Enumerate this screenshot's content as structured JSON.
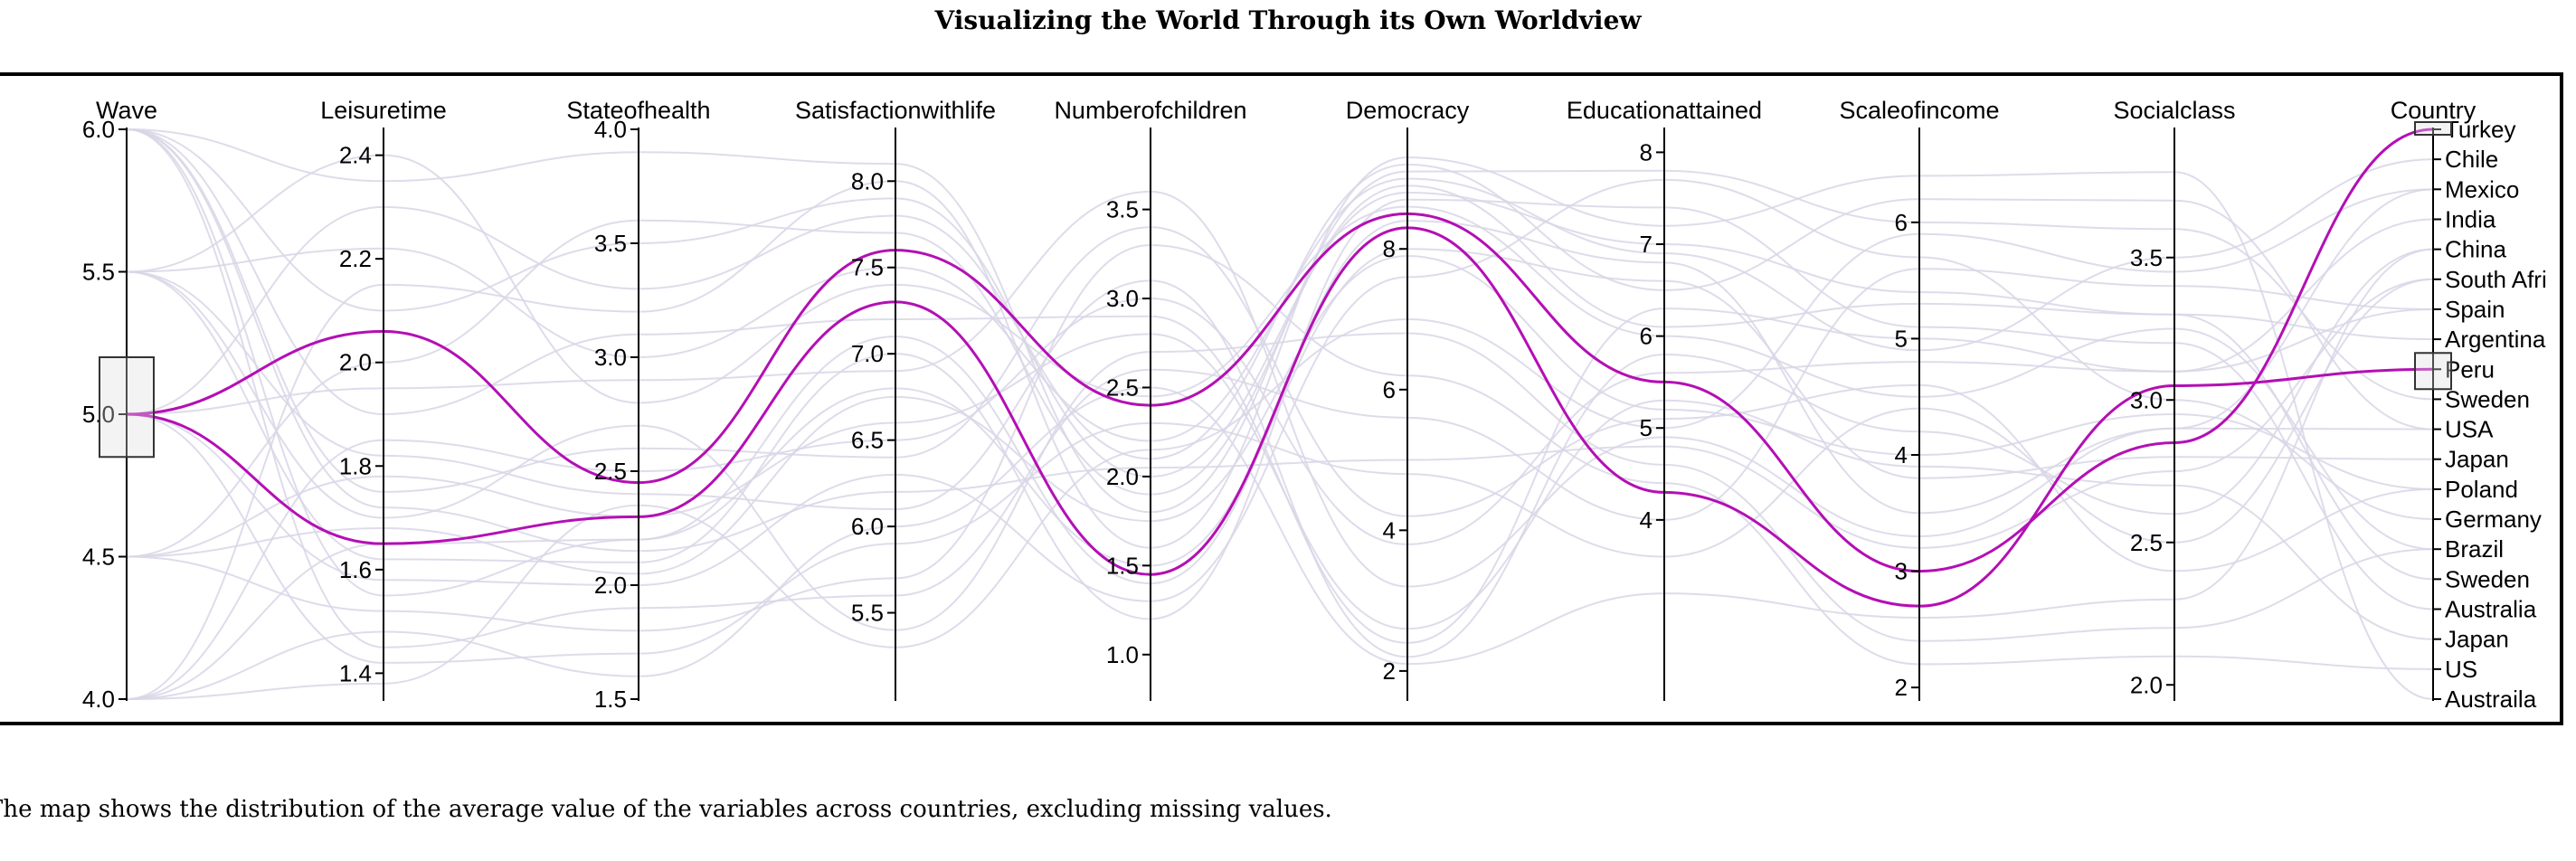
{
  "page": {
    "title": "Visualizing the World Through its Own Worldview",
    "caption": "The map shows the distribution of the average value of the variables across countries, excluding missing values."
  },
  "colors": {
    "background_line": "#d8d6e6",
    "highlight_line": "#b40fb4",
    "axis": "#000000",
    "brush_fill": "#dddddd"
  },
  "chart_data": {
    "type": "parallel-coordinates",
    "title": "Visualizing the World Through its Own Worldview",
    "axes": [
      {
        "name": "Wave",
        "label": "Wave",
        "domain": [
          4.0,
          6.0
        ],
        "ticks": [
          4.0,
          4.5,
          5.0,
          5.5,
          6.0
        ],
        "tick_labels": [
          "4.0",
          "4.5",
          "5.0",
          "5.5",
          "6.0"
        ],
        "brush": [
          4.85,
          5.2
        ]
      },
      {
        "name": "Leisuretime",
        "label": "Leisuretime",
        "domain": [
          1.35,
          2.45
        ],
        "ticks": [
          1.4,
          1.6,
          1.8,
          2.0,
          2.2,
          2.4
        ],
        "tick_labels": [
          "1.4",
          "1.6",
          "1.8",
          "2.0",
          "2.2",
          "2.4"
        ]
      },
      {
        "name": "Stateofhealth",
        "label": "Stateofhealth",
        "domain": [
          1.5,
          4.0
        ],
        "ticks": [
          1.5,
          2.0,
          2.5,
          3.0,
          3.5,
          4.0
        ],
        "tick_labels": [
          "1.5",
          "2.0",
          "2.5",
          "3.0",
          "3.5",
          "4.0"
        ]
      },
      {
        "name": "Satisfactionwithlife",
        "label": "Satisfactionwithlife",
        "domain": [
          5.0,
          8.3
        ],
        "ticks": [
          5.5,
          6.0,
          6.5,
          7.0,
          7.5,
          8.0
        ],
        "tick_labels": [
          "5.5",
          "6.0",
          "6.5",
          "7.0",
          "7.5",
          "8.0"
        ]
      },
      {
        "name": "Numberofchildren",
        "label": "Numberofchildren",
        "domain": [
          0.75,
          3.95
        ],
        "ticks": [
          1.0,
          1.5,
          2.0,
          2.5,
          3.0,
          3.5
        ],
        "tick_labels": [
          "1.0",
          "1.5",
          "2.0",
          "2.5",
          "3.0",
          "3.5"
        ]
      },
      {
        "name": "Democracy",
        "label": "Democracy",
        "domain": [
          1.6,
          9.7
        ],
        "ticks": [
          2,
          4,
          6,
          8
        ],
        "tick_labels": [
          "2",
          "4",
          "6",
          "8"
        ]
      },
      {
        "name": "Educationattained",
        "label": "Educationattained",
        "domain": [
          2.05,
          8.25
        ],
        "ticks": [
          4,
          5,
          6,
          7,
          8
        ],
        "tick_labels": [
          "4",
          "5",
          "6",
          "7",
          "8"
        ]
      },
      {
        "name": "Scaleofincome",
        "label": "Scaleofincome",
        "domain": [
          1.9,
          6.8
        ],
        "ticks": [
          2,
          3,
          4,
          5,
          6
        ],
        "tick_labels": [
          "2",
          "3",
          "4",
          "5",
          "6"
        ]
      },
      {
        "name": "Socialclass",
        "label": "Socialclass",
        "domain": [
          1.95,
          3.95
        ],
        "ticks": [
          2.0,
          2.5,
          3.0,
          3.5
        ],
        "tick_labels": [
          "2.0",
          "2.5",
          "3.0",
          "3.5"
        ]
      },
      {
        "name": "Country",
        "label": "Country",
        "categorical": true,
        "categories": [
          "Turkey",
          "Chile",
          "Mexico",
          "India",
          "China",
          "South Afri",
          "Spain",
          "Argentina",
          "Peru",
          "Sweden",
          "USA",
          "Japan",
          "Poland",
          "Germany",
          "Brazil",
          "Sweden",
          "Australia",
          "Japan",
          "US",
          "Austraila"
        ],
        "brushes": [
          [
            0,
            0
          ],
          [
            8,
            8
          ]
        ]
      }
    ],
    "highlighted": [
      {
        "Wave": 5.0,
        "Leisuretime": 2.06,
        "Stateofhealth": 2.45,
        "Satisfactionwithlife": 7.6,
        "Numberofchildren": 2.4,
        "Democracy": 8.5,
        "Educationattained": 5.5,
        "Scaleofincome": 3.0,
        "Socialclass": 2.85,
        "Country": 0
      },
      {
        "Wave": 5.0,
        "Leisuretime": 1.65,
        "Stateofhealth": 2.3,
        "Satisfactionwithlife": 7.3,
        "Numberofchildren": 1.45,
        "Democracy": 8.3,
        "Educationattained": 4.3,
        "Scaleofincome": 2.7,
        "Socialclass": 3.05,
        "Country": 8
      }
    ],
    "background": [
      {
        "Wave": 6.0,
        "Leisuretime": 2.35,
        "Stateofhealth": 3.9,
        "Satisfactionwithlife": 8.1,
        "Numberofchildren": 1.8,
        "Democracy": 9.1,
        "Educationattained": 7.8,
        "Scaleofincome": 6.0,
        "Socialclass": 3.6,
        "Country": 9
      },
      {
        "Wave": 6.0,
        "Leisuretime": 2.1,
        "Stateofhealth": 3.5,
        "Satisfactionwithlife": 7.9,
        "Numberofchildren": 2.0,
        "Democracy": 8.8,
        "Educationattained": 7.0,
        "Scaleofincome": 5.4,
        "Socialclass": 3.3,
        "Country": 15
      },
      {
        "Wave": 6.0,
        "Leisuretime": 1.9,
        "Stateofhealth": 3.1,
        "Satisfactionwithlife": 7.2,
        "Numberofchildren": 2.9,
        "Democracy": 2.4,
        "Educationattained": 6.3,
        "Scaleofincome": 5.0,
        "Socialclass": 3.1,
        "Country": 3
      },
      {
        "Wave": 6.0,
        "Leisuretime": 1.75,
        "Stateofhealth": 2.6,
        "Satisfactionwithlife": 6.4,
        "Numberofchildren": 3.4,
        "Democracy": 4.2,
        "Educationattained": 5.1,
        "Scaleofincome": 4.6,
        "Socialclass": 2.4,
        "Country": 12
      },
      {
        "Wave": 6.0,
        "Leisuretime": 1.55,
        "Stateofhealth": 2.2,
        "Satisfactionwithlife": 6.8,
        "Numberofchildren": 1.5,
        "Democracy": 8.0,
        "Educationattained": 6.6,
        "Scaleofincome": 3.8,
        "Socialclass": 2.8,
        "Country": 11
      },
      {
        "Wave": 6.0,
        "Leisuretime": 1.45,
        "Stateofhealth": 1.9,
        "Satisfactionwithlife": 5.6,
        "Numberofchildren": 2.6,
        "Democracy": 5.6,
        "Educationattained": 4.0,
        "Scaleofincome": 5.6,
        "Socialclass": 3.4,
        "Country": 6
      },
      {
        "Wave": 5.5,
        "Leisuretime": 2.22,
        "Stateofhealth": 3.0,
        "Satisfactionwithlife": 7.5,
        "Numberofchildren": 2.2,
        "Democracy": 9.0,
        "Educationattained": 6.9,
        "Scaleofincome": 4.9,
        "Socialclass": 3.5,
        "Country": 1
      },
      {
        "Wave": 5.5,
        "Leisuretime": 1.82,
        "Stateofhealth": 2.4,
        "Satisfactionwithlife": 6.1,
        "Numberofchildren": 3.1,
        "Democracy": 2.2,
        "Educationattained": 5.8,
        "Scaleofincome": 4.2,
        "Socialclass": 2.6,
        "Country": 4
      },
      {
        "Wave": 5.5,
        "Leisuretime": 1.62,
        "Stateofhealth": 2.1,
        "Satisfactionwithlife": 7.0,
        "Numberofchildren": 1.2,
        "Democracy": 8.7,
        "Educationattained": 7.4,
        "Scaleofincome": 5.1,
        "Socialclass": 3.2,
        "Country": 16
      },
      {
        "Wave": 5.5,
        "Leisuretime": 1.7,
        "Stateofhealth": 2.7,
        "Satisfactionwithlife": 5.4,
        "Numberofchildren": 2.7,
        "Democracy": 6.8,
        "Educationattained": 4.6,
        "Scaleofincome": 2.4,
        "Socialclass": 2.2,
        "Country": 14
      },
      {
        "Wave": 5.0,
        "Leisuretime": 2.3,
        "Stateofhealth": 3.3,
        "Satisfactionwithlife": 7.8,
        "Numberofchildren": 2.1,
        "Democracy": 9.2,
        "Educationattained": 6.5,
        "Scaleofincome": 6.2,
        "Socialclass": 3.7,
        "Country": 10
      },
      {
        "Wave": 5.0,
        "Leisuretime": 1.95,
        "Stateofhealth": 2.9,
        "Satisfactionwithlife": 6.9,
        "Numberofchildren": 3.6,
        "Democracy": 3.2,
        "Educationattained": 4.9,
        "Scaleofincome": 3.3,
        "Socialclass": 2.9,
        "Country": 2
      },
      {
        "Wave": 5.0,
        "Leisuretime": 1.58,
        "Stateofhealth": 2.0,
        "Satisfactionwithlife": 6.3,
        "Numberofchildren": 1.3,
        "Democracy": 7.6,
        "Educationattained": 7.7,
        "Scaleofincome": 5.7,
        "Socialclass": 3.0,
        "Country": 13
      },
      {
        "Wave": 5.0,
        "Leisuretime": 1.42,
        "Stateofhealth": 1.7,
        "Satisfactionwithlife": 5.9,
        "Numberofchildren": 2.3,
        "Democracy": 4.8,
        "Educationattained": 3.6,
        "Scaleofincome": 4.4,
        "Socialclass": 2.5,
        "Country": 5
      },
      {
        "Wave": 4.5,
        "Leisuretime": 2.0,
        "Stateofhealth": 3.6,
        "Satisfactionwithlife": 7.7,
        "Numberofchildren": 1.9,
        "Democracy": 8.9,
        "Educationattained": 6.1,
        "Scaleofincome": 5.3,
        "Socialclass": 3.3,
        "Country": 7
      },
      {
        "Wave": 4.5,
        "Leisuretime": 1.78,
        "Stateofhealth": 2.3,
        "Satisfactionwithlife": 6.6,
        "Numberofchildren": 2.8,
        "Democracy": 2.6,
        "Educationattained": 5.3,
        "Scaleofincome": 3.9,
        "Socialclass": 2.7,
        "Country": 17
      },
      {
        "Wave": 4.5,
        "Leisuretime": 1.52,
        "Stateofhealth": 1.8,
        "Satisfactionwithlife": 5.7,
        "Numberofchildren": 3.3,
        "Democracy": 6.2,
        "Educationattained": 4.4,
        "Scaleofincome": 2.2,
        "Socialclass": 2.1,
        "Country": 18
      },
      {
        "Wave": 4.0,
        "Leisuretime": 2.15,
        "Stateofhealth": 3.2,
        "Satisfactionwithlife": 8.0,
        "Numberofchildren": 1.6,
        "Democracy": 9.3,
        "Educationattained": 7.2,
        "Scaleofincome": 6.4,
        "Socialclass": 3.8,
        "Country": 19
      },
      {
        "Wave": 4.0,
        "Leisuretime": 1.85,
        "Stateofhealth": 2.5,
        "Satisfactionwithlife": 6.5,
        "Numberofchildren": 3.0,
        "Democracy": 3.8,
        "Educationattained": 5.6,
        "Scaleofincome": 4.8,
        "Socialclass": 3.1,
        "Country": 6
      },
      {
        "Wave": 4.0,
        "Leisuretime": 1.65,
        "Stateofhealth": 2.2,
        "Satisfactionwithlife": 7.1,
        "Numberofchildren": 1.4,
        "Democracy": 8.4,
        "Educationattained": 6.8,
        "Scaleofincome": 3.5,
        "Socialclass": 2.9,
        "Country": 10
      },
      {
        "Wave": 4.0,
        "Leisuretime": 1.48,
        "Stateofhealth": 1.6,
        "Satisfactionwithlife": 6.0,
        "Numberofchildren": 2.5,
        "Democracy": 2.1,
        "Educationattained": 3.2,
        "Scaleofincome": 2.6,
        "Socialclass": 2.3,
        "Country": 4
      },
      {
        "Wave": 4.0,
        "Leisuretime": 1.38,
        "Stateofhealth": 2.35,
        "Satisfactionwithlife": 5.3,
        "Numberofchildren": 2.15,
        "Democracy": 7.0,
        "Educationattained": 5.0,
        "Scaleofincome": 5.9,
        "Socialclass": 3.45,
        "Country": 2
      },
      {
        "Wave": 5.5,
        "Leisuretime": 2.4,
        "Stateofhealth": 2.8,
        "Satisfactionwithlife": 7.4,
        "Numberofchildren": 2.45,
        "Democracy": 8.6,
        "Educationattained": 6.0,
        "Scaleofincome": 4.5,
        "Socialclass": 3.25,
        "Country": 14
      },
      {
        "Wave": 4.5,
        "Leisuretime": 1.68,
        "Stateofhealth": 2.05,
        "Satisfactionwithlife": 6.75,
        "Numberofchildren": 1.75,
        "Democracy": 7.9,
        "Educationattained": 5.2,
        "Scaleofincome": 4.0,
        "Socialclass": 2.95,
        "Country": 12
      },
      {
        "Wave": 6.0,
        "Leisuretime": 1.72,
        "Stateofhealth": 2.15,
        "Satisfactionwithlife": 6.2,
        "Numberofchildren": 2.05,
        "Democracy": 5.0,
        "Educationattained": 4.8,
        "Scaleofincome": 3.2,
        "Socialclass": 2.75,
        "Country": 5
      }
    ]
  }
}
